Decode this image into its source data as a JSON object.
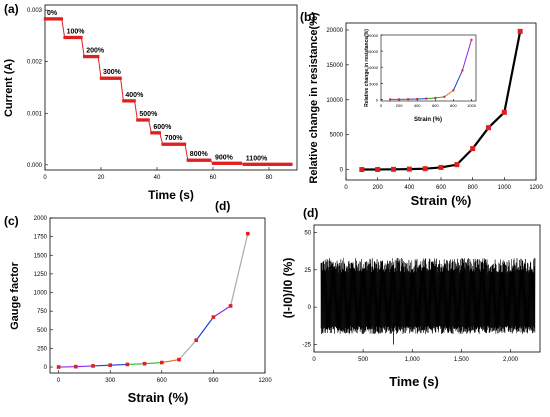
{
  "chart_data": [
    {
      "panel_label": "(a)",
      "type": "line",
      "xlabel": "Time (s)",
      "ylabel": "Current (A)",
      "xlim": [
        0,
        90
      ],
      "ylim": [
        -0.0001,
        0.0031
      ],
      "xticks": [
        0,
        20,
        40,
        60,
        80
      ],
      "yticks": [
        0.0,
        0.001,
        0.002,
        0.003
      ],
      "ytick_labels": [
        "0.000",
        "0.001",
        "0.002",
        "0.003"
      ],
      "series_color": "#e02020",
      "steps": [
        {
          "label": "0%",
          "t_start": 0,
          "t_end": 6,
          "value": 0.00283
        },
        {
          "label": "100%",
          "t_start": 7,
          "t_end": 13,
          "value": 0.00247
        },
        {
          "label": "200%",
          "t_start": 14,
          "t_end": 19,
          "value": 0.0021
        },
        {
          "label": "300%",
          "t_start": 20,
          "t_end": 27,
          "value": 0.00168
        },
        {
          "label": "400%",
          "t_start": 28,
          "t_end": 32,
          "value": 0.00124
        },
        {
          "label": "500%",
          "t_start": 33,
          "t_end": 37,
          "value": 0.00087
        },
        {
          "label": "600%",
          "t_start": 38,
          "t_end": 41,
          "value": 0.00062
        },
        {
          "label": "700%",
          "t_start": 42,
          "t_end": 50,
          "value": 0.0004
        },
        {
          "label": "800%",
          "t_start": 51,
          "t_end": 59,
          "value": 9e-05
        },
        {
          "label": "900%",
          "t_start": 60,
          "t_end": 70,
          "value": 3e-05
        },
        {
          "label": "1100%",
          "t_start": 71,
          "t_end": 88,
          "value": 1e-05
        }
      ]
    },
    {
      "panel_label": "(b)",
      "type": "line",
      "xlabel": "Strain (%)",
      "ylabel": "Relative change in resistance(%)",
      "xlim": [
        0,
        1200
      ],
      "ylim": [
        -1500,
        21000
      ],
      "xticks": [
        0,
        200,
        400,
        600,
        800,
        1000,
        1200
      ],
      "yticks": [
        0,
        5000,
        10000,
        15000,
        20000
      ],
      "x": [
        100,
        200,
        300,
        400,
        500,
        600,
        700,
        800,
        900,
        1000,
        1100
      ],
      "values": [
        0,
        10,
        30,
        60,
        120,
        300,
        700,
        3000,
        6000,
        8200,
        19800
      ],
      "line_color": "#000000",
      "marker_color": "#e02020",
      "inset": {
        "xlabel": "Strain (%)",
        "ylabel": "Relative change in resistance(%)",
        "xlim": [
          0,
          1050
        ],
        "ylim": [
          -500,
          20000
        ],
        "xticks": [
          0,
          200,
          400,
          600,
          800,
          1000
        ],
        "yticks": [
          0,
          5000,
          10000,
          15000,
          20000
        ],
        "x": [
          100,
          200,
          300,
          400,
          500,
          600,
          700,
          800,
          900,
          1000
        ],
        "values": [
          0,
          20,
          60,
          120,
          250,
          450,
          800,
          2800,
          9000,
          18500
        ],
        "segment_colors": [
          "#8a2be2",
          "#8a2be2",
          "#1f3fd8",
          "#1f3fd8",
          "#20a020",
          "#20a020",
          "#e07020",
          "#1f3fd8",
          "#8a2be2"
        ]
      }
    },
    {
      "panel_label": "(c)",
      "type": "line",
      "xlabel": "Strain (%)",
      "ylabel": "Gauge factor",
      "xlim": [
        -50,
        1200
      ],
      "ylim": [
        -80,
        2000
      ],
      "xticks": [
        0,
        300,
        600,
        900,
        1200
      ],
      "yticks": [
        0,
        250,
        500,
        750,
        1000,
        1250,
        1500,
        1750,
        2000
      ],
      "x": [
        0,
        100,
        200,
        300,
        400,
        500,
        600,
        700,
        800,
        900,
        1000,
        1100
      ],
      "values": [
        0,
        5,
        15,
        25,
        35,
        45,
        60,
        100,
        360,
        670,
        820,
        1790
      ],
      "segment_colors": [
        "#8a2be2",
        "#8a2be2",
        "#1f3fd8",
        "#1f3fd8",
        "#20c020",
        "#20c020",
        "#e07020",
        "#aaaaaa",
        "#1f3fd8",
        "#8a2be2",
        "#aaaaaa"
      ],
      "marker_color": "#e02020"
    },
    {
      "panel_label": "(d)",
      "type": "line",
      "xlabel": "Time (s)",
      "ylabel": "(I-I0)/I0 (%)",
      "xlim": [
        0,
        2300
      ],
      "ylim": [
        -30,
        55
      ],
      "xticks": [
        0,
        500,
        1000,
        1500,
        2000
      ],
      "xtick_labels": [
        "0",
        "500",
        "1,000",
        "1,500",
        "2,000"
      ],
      "yticks": [
        -25,
        0,
        25,
        50
      ],
      "signal_mean": 0,
      "signal_amplitude_range": [
        -18,
        33
      ],
      "spike": {
        "x": 810,
        "y": -25
      },
      "color": "#000000"
    }
  ]
}
